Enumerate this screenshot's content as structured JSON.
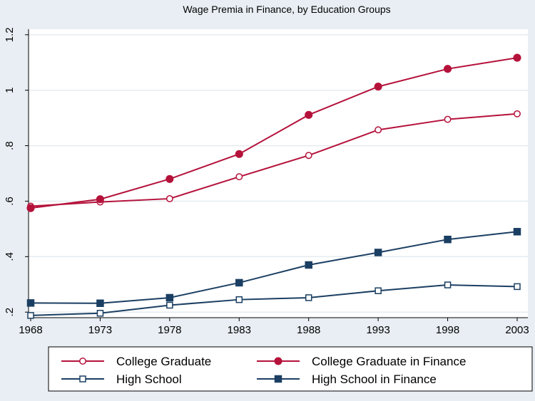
{
  "chart_data": {
    "type": "line",
    "title": "Wage Premia in Finance, by Education Groups",
    "xlabel": "",
    "ylabel": "",
    "x": [
      1968,
      1973,
      1978,
      1983,
      1988,
      1993,
      1998,
      2003
    ],
    "x_tick_labels": [
      "1968",
      "1973",
      "1978",
      "1983",
      "1988",
      "1993",
      "1998",
      "2003"
    ],
    "y_ticks": [
      0.2,
      0.4,
      0.6,
      0.8,
      1.0,
      1.2
    ],
    "y_tick_labels": [
      ".2",
      ".4",
      ".6",
      ".8",
      "1",
      "1.2"
    ],
    "ylim": [
      0.18,
      1.22
    ],
    "grid": true,
    "legend_position": "bottom",
    "series": [
      {
        "name": "College Graduate",
        "color": "#b5123b",
        "marker": "circle-open",
        "values": [
          0.582,
          0.597,
          0.609,
          0.688,
          0.765,
          0.857,
          0.895,
          0.915
        ]
      },
      {
        "name": "College Graduate in Finance",
        "color": "#b5123b",
        "marker": "circle-filled",
        "values": [
          0.575,
          0.607,
          0.68,
          0.77,
          0.911,
          1.013,
          1.077,
          1.117
        ]
      },
      {
        "name": "High School",
        "color": "#1b3f62",
        "marker": "square-open",
        "values": [
          0.188,
          0.196,
          0.225,
          0.245,
          0.252,
          0.277,
          0.298,
          0.292
        ]
      },
      {
        "name": "High School in Finance",
        "color": "#1b3f62",
        "marker": "square-filled",
        "values": [
          0.233,
          0.232,
          0.252,
          0.306,
          0.37,
          0.415,
          0.462,
          0.49
        ]
      }
    ]
  }
}
